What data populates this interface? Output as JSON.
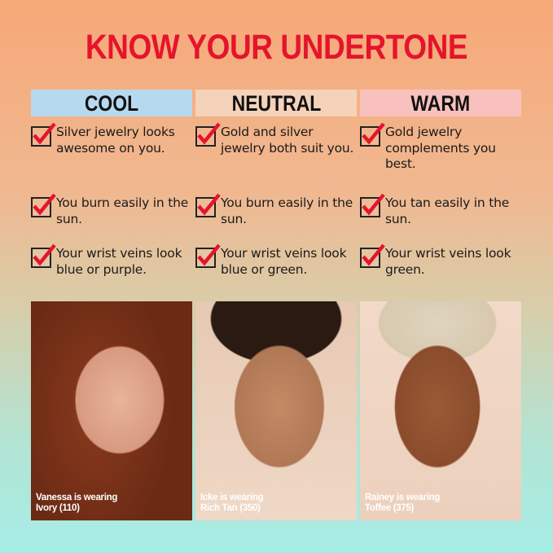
{
  "title": "KNOW YOUR UNDERTONE",
  "columns": [
    {
      "label": "COOL",
      "color": "#b7d9ef",
      "items": [
        "Silver jewelry looks awesome on you.",
        "You burn easily in the sun.",
        "Your wrist veins look blue or purple."
      ],
      "caption_line1": "Vanessa is wearing",
      "caption_line2": "Ivory (110)"
    },
    {
      "label": "NEUTRAL",
      "color": "#f5d2ba",
      "items": [
        "Gold and silver jewelry both suit you.",
        "You burn easily in the sun.",
        "Your wrist veins look blue or green."
      ],
      "caption_line1": "Icke is wearing",
      "caption_line2": "Rich Tan (350)"
    },
    {
      "label": "WARM",
      "color": "#f8c1bd",
      "items": [
        "Gold jewelry complements you best.",
        "You tan easily in the sun.",
        "Your wrist veins look green."
      ],
      "caption_line1": "Rainey is wearing",
      "caption_line2": "Toffee (375)"
    }
  ],
  "accent": "#e5142c",
  "icon": "red-checkmark-in-box"
}
